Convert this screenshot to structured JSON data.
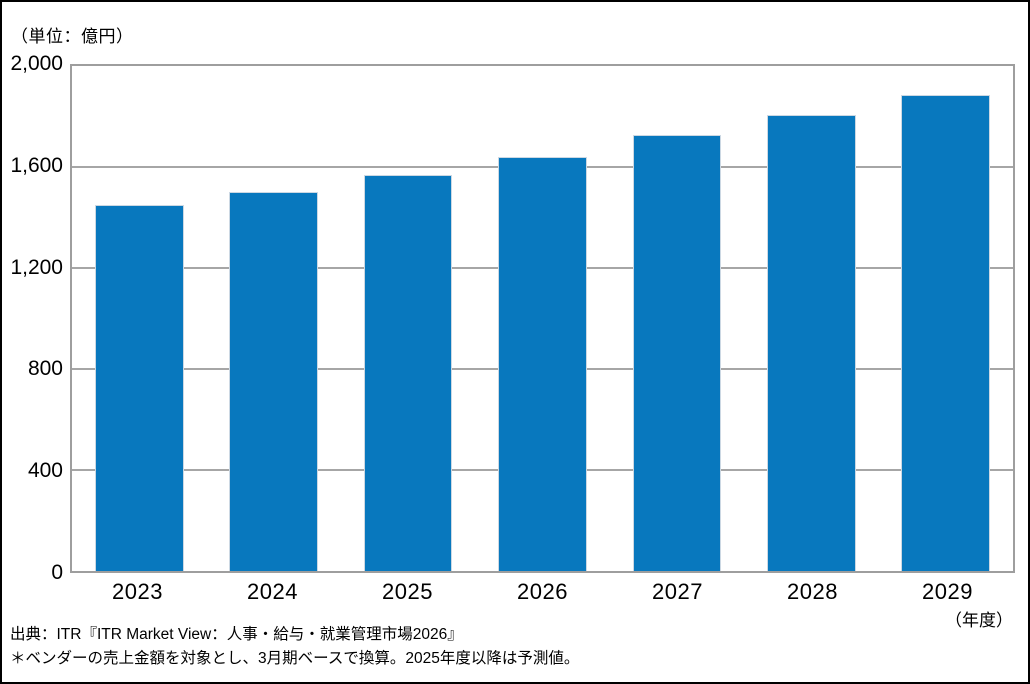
{
  "unit_label": "（単位：億円）",
  "x_axis_unit": "（年度）",
  "footer": {
    "source": "出典：ITR『ITR Market View：人事・給与・就業管理市場2026』",
    "note": "＊ベンダーの売上金額を対象とし、3月期ベースで換算。2025年度以降は予測値。"
  },
  "colors": {
    "bar": "#0878be",
    "bar_border": "#ccd8e3",
    "grid": "#a6a6a6",
    "plot_border": "#9e9e9e",
    "text": "#000000"
  },
  "chart_data": {
    "type": "bar",
    "categories": [
      "2023",
      "2024",
      "2025",
      "2026",
      "2027",
      "2028",
      "2029"
    ],
    "values": [
      1450,
      1500,
      1570,
      1640,
      1725,
      1805,
      1885
    ],
    "title": "",
    "xlabel": "（年度）",
    "ylabel": "（単位：億円）",
    "ylim": [
      0,
      2000
    ],
    "yticks": [
      0,
      400,
      800,
      1200,
      1600,
      2000
    ],
    "grid": true,
    "legend_position": "none"
  }
}
